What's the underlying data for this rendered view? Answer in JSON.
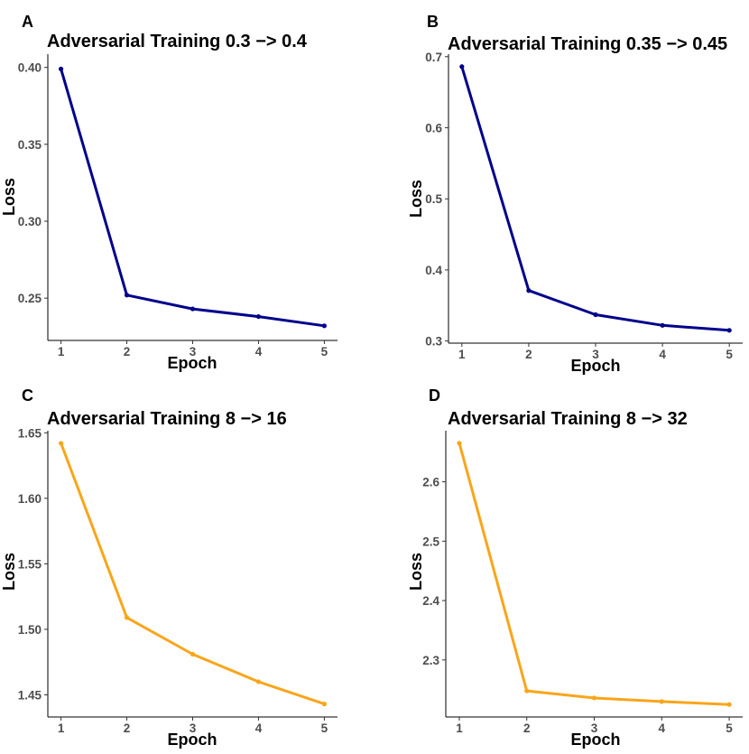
{
  "chart_data": [
    {
      "panel": "A",
      "type": "line",
      "title": "Adversarial Training 0.3 −> 0.4",
      "xlabel": "Epoch",
      "ylabel": "Loss",
      "x": [
        1,
        2,
        3,
        4,
        5
      ],
      "xticks": [
        "1",
        "2",
        "3",
        "4",
        "5"
      ],
      "series": [
        {
          "name": "Loss",
          "values": [
            0.399,
            0.252,
            0.243,
            0.238,
            0.232
          ],
          "color": "#00008B"
        }
      ],
      "yticks": [
        0.25,
        0.3,
        0.35,
        0.4
      ],
      "ytick_labels": [
        "0.25",
        "0.30",
        "0.35",
        "0.40"
      ],
      "ylim": [
        0.2225,
        0.4086
      ],
      "xlim": [
        0.8,
        5.2
      ]
    },
    {
      "panel": "B",
      "type": "line",
      "title": "Adversarial Training 0.35 −> 0.45",
      "xlabel": "Epoch",
      "ylabel": "Loss",
      "x": [
        1,
        2,
        3,
        4,
        5
      ],
      "xticks": [
        "1",
        "2",
        "3",
        "4",
        "5"
      ],
      "series": [
        {
          "name": "Loss",
          "values": [
            0.686,
            0.371,
            0.337,
            0.322,
            0.315
          ],
          "color": "#00008B"
        }
      ],
      "yticks": [
        0.3,
        0.4,
        0.5,
        0.6,
        0.7
      ],
      "ytick_labels": [
        "0.3",
        "0.4",
        "0.5",
        "0.6",
        "0.7"
      ],
      "ylim": [
        0.297,
        0.7035
      ],
      "xlim": [
        0.8,
        5.2
      ]
    },
    {
      "panel": "C",
      "type": "line",
      "title": "Adversarial Training 8 −> 16",
      "xlabel": "Epoch",
      "ylabel": "Loss",
      "x": [
        1,
        2,
        3,
        4,
        5
      ],
      "xticks": [
        "1",
        "2",
        "3",
        "4",
        "5"
      ],
      "series": [
        {
          "name": "Loss",
          "values": [
            1.642,
            1.509,
            1.481,
            1.46,
            1.443
          ],
          "color": "#F9A51A"
        }
      ],
      "yticks": [
        1.45,
        1.5,
        1.55,
        1.6,
        1.65
      ],
      "ytick_labels": [
        "1.45",
        "1.50",
        "1.55",
        "1.60",
        "1.65"
      ],
      "ylim": [
        1.4331,
        1.6516
      ],
      "xlim": [
        0.8,
        5.2
      ]
    },
    {
      "panel": "D",
      "type": "line",
      "title": "Adversarial Training 8 −> 32",
      "xlabel": "Epoch",
      "ylabel": "Loss",
      "x": [
        1,
        2,
        3,
        4,
        5
      ],
      "xticks": [
        "1",
        "2",
        "3",
        "4",
        "5"
      ],
      "series": [
        {
          "name": "Loss",
          "values": [
            2.665,
            2.248,
            2.236,
            2.23,
            2.225
          ],
          "color": "#F9A51A"
        }
      ],
      "yticks": [
        2.3,
        2.4,
        2.5,
        2.6
      ],
      "ytick_labels": [
        "2.3",
        "2.4",
        "2.5",
        "2.6"
      ],
      "ylim": [
        2.204,
        2.686
      ],
      "xlim": [
        0.8,
        5.2
      ]
    }
  ]
}
